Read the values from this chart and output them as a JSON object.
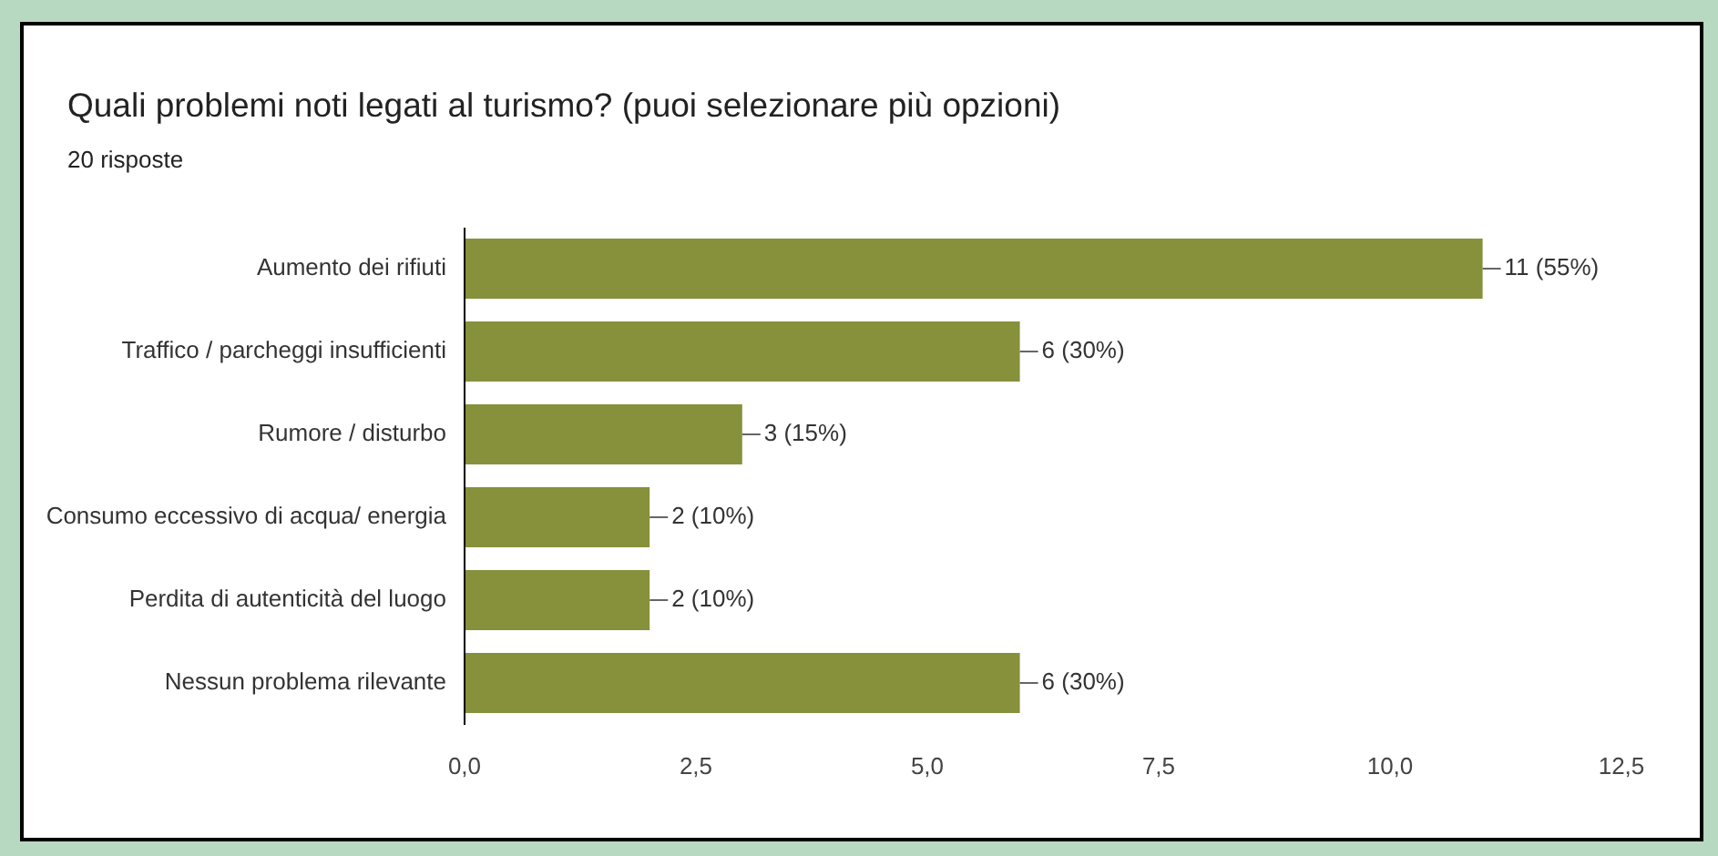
{
  "chart_data": {
    "type": "bar",
    "orientation": "horizontal",
    "title": "Quali problemi noti legati al turismo? (puoi selezionare più opzioni)",
    "subtitle": "20 risposte",
    "categories": [
      "Aumento dei rifiuti",
      "Traffico / parcheggi insufficienti",
      "Rumore / disturbo",
      "Consumo eccessivo di acqua/ energia",
      "Perdita di autenticità del luogo",
      "Nessun problema rilevante"
    ],
    "values": [
      11,
      6,
      3,
      2,
      2,
      6
    ],
    "value_labels": [
      "11 (55%)",
      "6 (30%)",
      "3 (15%)",
      "2 (10%)",
      "2 (10%)",
      "6 (30%)"
    ],
    "color": "#87903b",
    "xlim": [
      0,
      12.5
    ],
    "xticks": [
      {
        "value": 0,
        "label": "0,0"
      },
      {
        "value": 2.5,
        "label": "2,5"
      },
      {
        "value": 5,
        "label": "5,0"
      },
      {
        "value": 7.5,
        "label": "7,5"
      },
      {
        "value": 10,
        "label": "10,0"
      },
      {
        "value": 12.5,
        "label": "12,5"
      }
    ],
    "grid": false,
    "legend": false
  }
}
